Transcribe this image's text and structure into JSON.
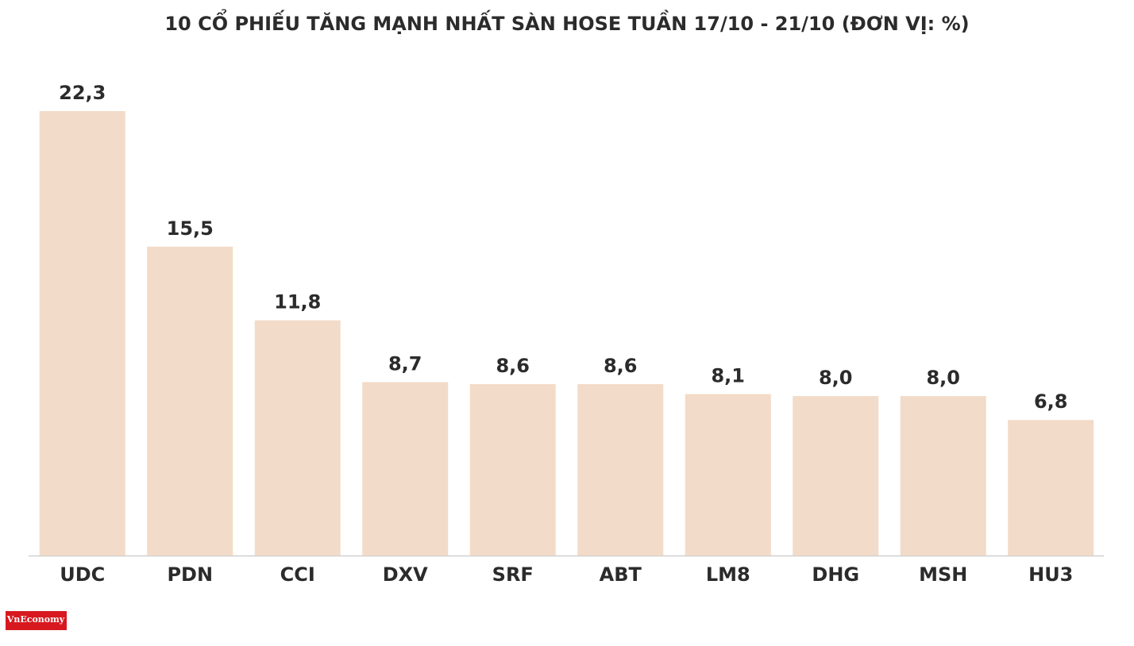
{
  "chart_data": {
    "type": "bar",
    "title": "10 CỔ PHIẾU TĂNG MẠNH NHẤT SÀN HOSE TUẦN 17/10 - 21/10 (ĐƠN VỊ: %)",
    "categories": [
      "UDC",
      "PDN",
      "CCI",
      "DXV",
      "SRF",
      "ABT",
      "LM8",
      "DHG",
      "MSH",
      "HU3"
    ],
    "values": [
      22.3,
      15.5,
      11.8,
      8.7,
      8.6,
      8.6,
      8.1,
      8.0,
      8.0,
      6.8
    ],
    "value_labels": [
      "22,3",
      "15,5",
      "11,8",
      "8,7",
      "8,6",
      "8,6",
      "8,1",
      "8,0",
      "8,0",
      "6,8"
    ],
    "color": "#f2dbc8"
  },
  "logo": "VnEconomy"
}
